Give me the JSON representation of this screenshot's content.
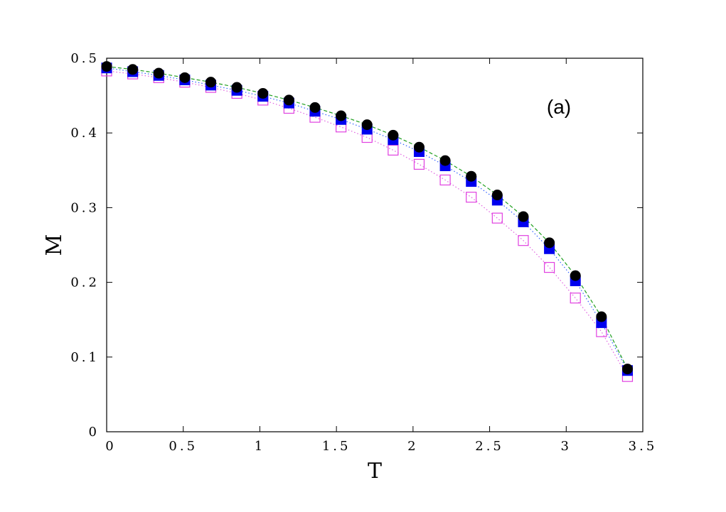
{
  "chart_data": {
    "type": "line",
    "xlabel": "T",
    "ylabel": "M",
    "xlim": [
      0,
      3.5
    ],
    "ylim": [
      0,
      0.5
    ],
    "xticks": [
      "0",
      "0.5",
      "1",
      "1.5",
      "2",
      "2.5",
      "3",
      "3.5"
    ],
    "yticks": [
      "0",
      "0.1",
      "0.2",
      "0.3",
      "0.4",
      "0.5"
    ],
    "annotation": "(a)",
    "grid": false,
    "x": [
      0,
      0.17,
      0.34,
      0.51,
      0.68,
      0.85,
      1.02,
      1.19,
      1.36,
      1.53,
      1.7,
      1.87,
      2.04,
      2.21,
      2.38,
      2.55,
      2.72,
      2.89,
      3.06,
      3.23,
      3.4
    ],
    "series": [
      {
        "marker": "open-square",
        "color": "#e040e0",
        "values": [
          0.483,
          0.479,
          0.474,
          0.468,
          0.461,
          0.453,
          0.444,
          0.433,
          0.421,
          0.408,
          0.394,
          0.377,
          0.358,
          0.337,
          0.314,
          0.286,
          0.256,
          0.22,
          0.179,
          0.134,
          0.074
        ]
      },
      {
        "marker": "filled-square",
        "color": "#0000ee",
        "values": [
          0.487,
          0.482,
          0.477,
          0.471,
          0.464,
          0.457,
          0.449,
          0.44,
          0.429,
          0.418,
          0.405,
          0.391,
          0.375,
          0.356,
          0.335,
          0.31,
          0.281,
          0.245,
          0.202,
          0.146,
          0.082
        ]
      },
      {
        "marker": "filled-circle",
        "color": "#000000",
        "values": [
          0.489,
          0.485,
          0.48,
          0.474,
          0.468,
          0.461,
          0.453,
          0.444,
          0.434,
          0.423,
          0.411,
          0.397,
          0.381,
          0.363,
          0.342,
          0.317,
          0.288,
          0.253,
          0.209,
          0.154,
          0.084
        ]
      }
    ]
  }
}
